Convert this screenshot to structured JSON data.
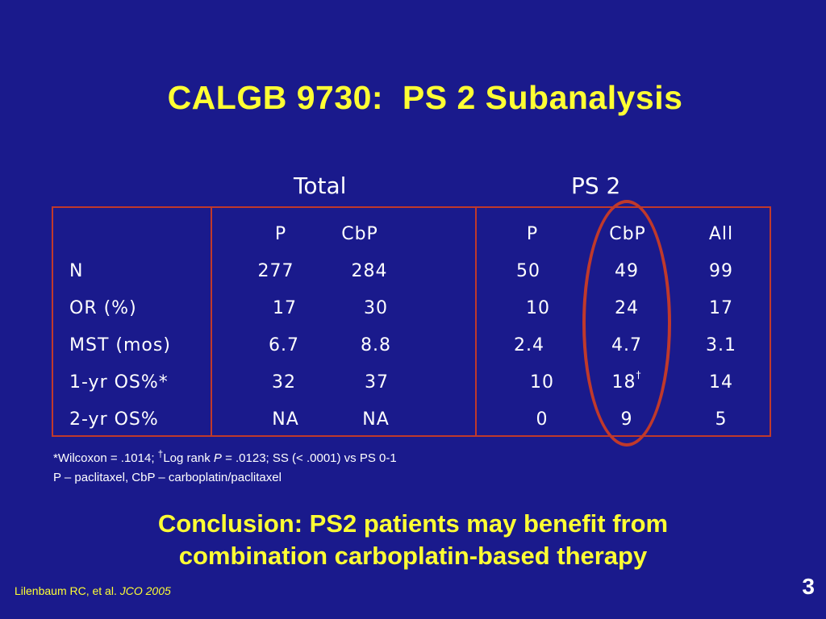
{
  "title": "CALGB 9730:  PS 2 Subanalysis",
  "group_headers": {
    "total": "Total",
    "ps2": "PS 2"
  },
  "table": {
    "columns": [
      "P",
      "CbP",
      "P",
      "CbP",
      "All"
    ],
    "rows": [
      {
        "label": "N",
        "values": [
          "277",
          "284",
          "50",
          "49",
          "99"
        ]
      },
      {
        "label": "OR (%)",
        "values": [
          "17",
          "30",
          "10",
          "24",
          "17"
        ]
      },
      {
        "label": "MST (mos)",
        "values": [
          "6.7",
          "8.8",
          "2.4",
          "4.7",
          "3.1"
        ]
      },
      {
        "label": "1-yr OS%*",
        "values": [
          "32",
          "37",
          "10",
          "18",
          "14"
        ],
        "note_marker": "†"
      },
      {
        "label": "2-yr OS%",
        "values": [
          "NA",
          "NA",
          "0",
          "9",
          "5"
        ]
      }
    ],
    "border_color": "#c0392b"
  },
  "footnotes": {
    "line1_a": "*Wilcoxon = .1014; ",
    "line1_dagger": "†",
    "line1_b": "Log rank ",
    "line1_p": "P",
    "line1_c": " = .0123; SS (< .0001) vs PS 0-1",
    "line2": "P – paclitaxel, CbP – carboplatin/paclitaxel"
  },
  "conclusion": {
    "line1": "Conclusion: PS2 patients may benefit from",
    "line2": "combination carboplatin-based therapy"
  },
  "citation": {
    "authors": "Lilenbaum RC, et al. ",
    "journal": "JCO",
    "year": " 2005"
  },
  "page_number": "3",
  "colors": {
    "background": "#1a1a8c",
    "title": "#ffff33",
    "text": "#ffffff",
    "highlight": "#c0392b"
  }
}
